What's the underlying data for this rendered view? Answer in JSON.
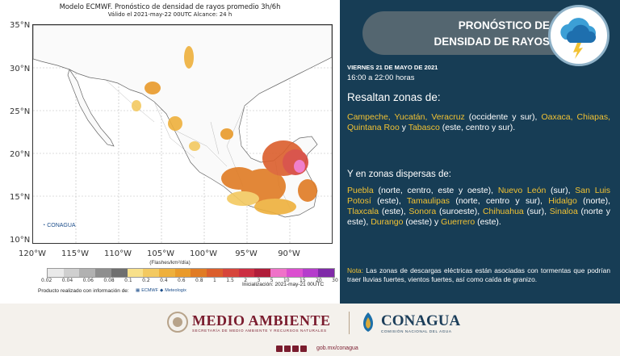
{
  "map": {
    "title_line1": "Modelo ECMWF. Pronóstico de densidad de rayos promedio 3h/6h",
    "title_line2": "Válido el 2021-may-22 00UTC     Alcance: 24 h",
    "lat_labels": [
      "35°N",
      "30°N",
      "25°N",
      "20°N",
      "15°N",
      "10°N"
    ],
    "lon_labels": [
      "120°W",
      "115°W",
      "110°W",
      "105°W",
      "100°W",
      "95°W",
      "90°W"
    ],
    "colorbar_unit": "(Flashes/km²/día)",
    "colorbar_ticks": [
      "0.02",
      "0.04",
      "0.06",
      "0.08",
      "0.1",
      "0.2",
      "0.4",
      "0.6",
      "0.8",
      "1",
      "1.5",
      "2",
      "3",
      "5",
      "10",
      "15",
      "20",
      "30"
    ],
    "colorbar_colors": [
      "#e9e9e9",
      "#cfcfcf",
      "#b1b1b1",
      "#8e8e8e",
      "#6f6f6f",
      "#f8e08a",
      "#f3c960",
      "#eeb03c",
      "#e99a2a",
      "#e07b24",
      "#db5e2c",
      "#d6453b",
      "#cc2e42",
      "#b01d3a",
      "#ef72c8",
      "#dc4fd0",
      "#b53ccc",
      "#7f2aa8"
    ],
    "map_watermark": "CONAGUA",
    "product_label": "Producto realizado con información de:",
    "init_label": "Inicialización: 2021-may-21 00UTC",
    "logo_ecmwf": "ECMWF",
    "logo_meteologix": "Meteologix"
  },
  "info": {
    "title_line1": "PRONÓSTICO DE",
    "title_line2": "DENSIDAD DE RAYOS",
    "date": "VIERNES 21 DE MAYO DE 2021",
    "time": "16:00 a 22:00 horas",
    "heading1": "Resaltan zonas de:",
    "para1": [
      {
        "t": "Campeche, Yucatán, Veracruz",
        "hl": true
      },
      {
        "t": " (occidente y sur), ",
        "hl": false
      },
      {
        "t": "Oaxaca, Chiapas, Quintana Roo",
        "hl": true
      },
      {
        "t": " y ",
        "hl": false
      },
      {
        "t": "Tabasco",
        "hl": true
      },
      {
        "t": " (este, centro y sur).",
        "hl": false
      }
    ],
    "heading2": "Y en zonas dispersas de:",
    "para2": [
      {
        "t": "Puebla",
        "hl": true
      },
      {
        "t": " (norte, centro, este y oeste), ",
        "hl": false
      },
      {
        "t": "Nuevo León",
        "hl": true
      },
      {
        "t": " (sur), ",
        "hl": false
      },
      {
        "t": "San Luis Potosí",
        "hl": true
      },
      {
        "t": " (este), ",
        "hl": false
      },
      {
        "t": "Tamaulipas",
        "hl": true
      },
      {
        "t": " (norte, centro y sur), ",
        "hl": false
      },
      {
        "t": "Hidalgo",
        "hl": true
      },
      {
        "t": " (norte), ",
        "hl": false
      },
      {
        "t": "Tlaxcala",
        "hl": true
      },
      {
        "t": " (este), ",
        "hl": false
      },
      {
        "t": "Sonora",
        "hl": true
      },
      {
        "t": " (suroeste), ",
        "hl": false
      },
      {
        "t": "Chihuahua",
        "hl": true
      },
      {
        "t": " (sur), ",
        "hl": false
      },
      {
        "t": "Sinaloa",
        "hl": true
      },
      {
        "t": " (norte y este), ",
        "hl": false
      },
      {
        "t": "Durango",
        "hl": true
      },
      {
        "t": " (oeste) y ",
        "hl": false
      },
      {
        "t": "Guerrero",
        "hl": true
      },
      {
        "t": " (este).",
        "hl": false
      }
    ],
    "note_label": "Nota:",
    "note_text": " Las zonas de descargas eléctricas están asociadas con tormentas que podrían traer lluvias fuertes, vientos fuertes, así como caída de granizo."
  },
  "footer": {
    "ma_title": "MEDIO AMBIENTE",
    "ma_sub": "SECRETARÍA DE MEDIO AMBIENTE Y RECURSOS NATURALES",
    "conagua_title": "CONAGUA",
    "conagua_sub": "COMISIÓN NACIONAL DEL AGUA",
    "web": "gob.mx/conagua"
  },
  "colors": {
    "panel_bg": "#173d55",
    "highlight": "#f2c233",
    "title_pill": "#546670",
    "brand_wine": "#7a1c2e",
    "brand_blue": "#1c3e5a"
  }
}
